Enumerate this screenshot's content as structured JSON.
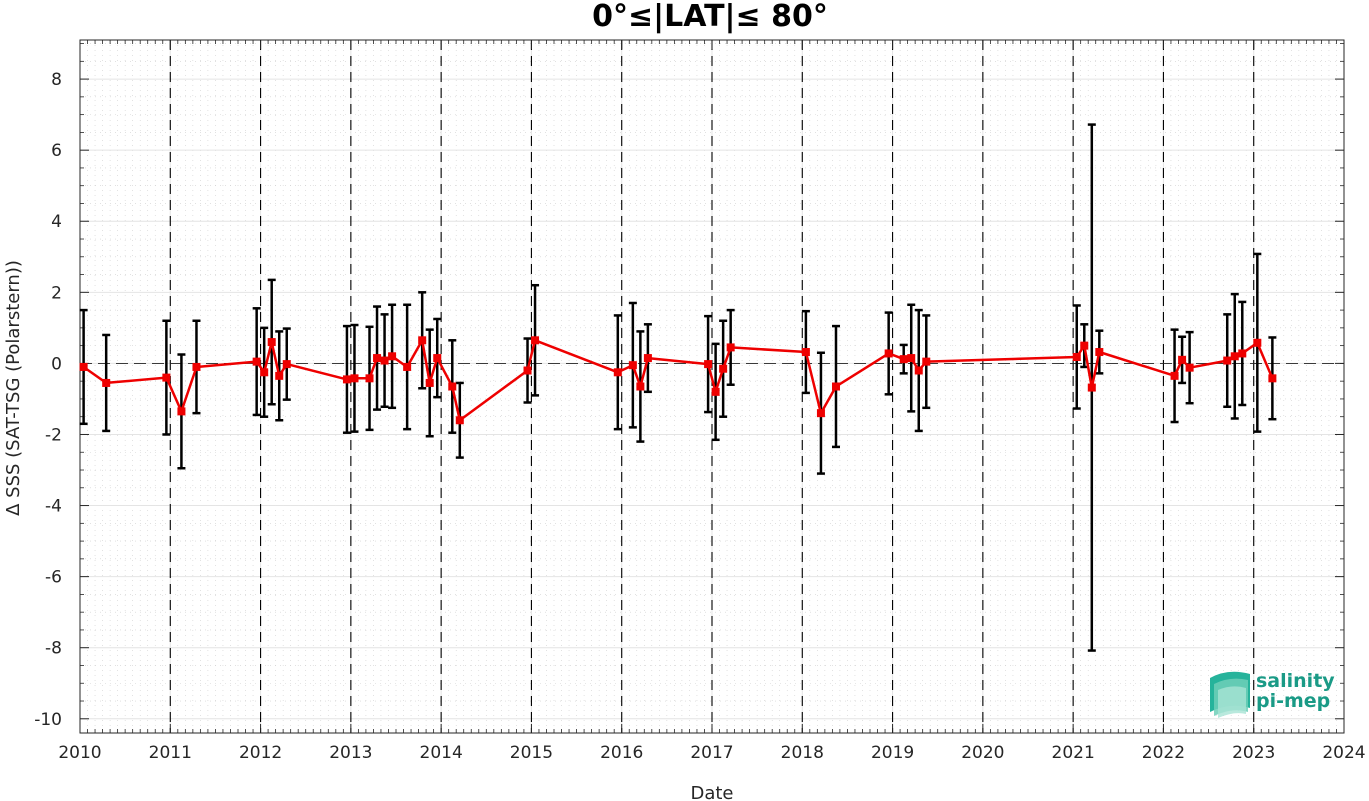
{
  "chart_data": {
    "type": "line",
    "title": "0°≤|LAT|≤ 80°",
    "xlabel": "Date",
    "ylabel": "Δ SSS (SAT-TSG (Polarstern))",
    "xlim": [
      2010,
      2024
    ],
    "ylim": [
      -10.4,
      9.1
    ],
    "x_ticks": [
      "2010",
      "2011",
      "2012",
      "2013",
      "2014",
      "2015",
      "2016",
      "2017",
      "2018",
      "2019",
      "2020",
      "2021",
      "2022",
      "2023",
      "2024"
    ],
    "y_ticks": [
      "8",
      "6",
      "4",
      "2",
      "0",
      "-2",
      "-4",
      "-6",
      "-8",
      "-10"
    ],
    "grid": true,
    "year_boundary_lines": true,
    "zero_line": true,
    "series": [
      {
        "color": "#ee0000",
        "marker": "square",
        "points": [
          {
            "x": "2010-01",
            "y": -0.1,
            "err": 1.6
          },
          {
            "x": "2010-04",
            "y": -0.55,
            "err": 1.35
          },
          {
            "x": "2010-12",
            "y": -0.4,
            "err": 1.6
          },
          {
            "x": "2011-02",
            "y": -1.35,
            "err": 1.6
          },
          {
            "x": "2011-04",
            "y": -0.1,
            "err": 1.3
          },
          {
            "x": "2011-12",
            "y": 0.05,
            "err": 1.5
          },
          {
            "x": "2012-01",
            "y": -0.25,
            "err": 1.25
          },
          {
            "x": "2012-02",
            "y": 0.6,
            "err": 1.75
          },
          {
            "x": "2012-03",
            "y": -0.35,
            "err": 1.25
          },
          {
            "x": "2012-04",
            "y": -0.02,
            "err": 1.0
          },
          {
            "x": "2012-12",
            "y": -0.45,
            "err": 1.5
          },
          {
            "x": "2013-01",
            "y": -0.42,
            "err": 1.5
          },
          {
            "x": "2013-03",
            "y": -0.42,
            "err": 1.45
          },
          {
            "x": "2013-04",
            "y": 0.15,
            "err": 1.45
          },
          {
            "x": "2013-05",
            "y": 0.08,
            "err": 1.3
          },
          {
            "x": "2013-06",
            "y": 0.2,
            "err": 1.45
          },
          {
            "x": "2013-08",
            "y": -0.1,
            "err": 1.75
          },
          {
            "x": "2013-10",
            "y": 0.65,
            "err": 1.35
          },
          {
            "x": "2013-11",
            "y": -0.55,
            "err": 1.5
          },
          {
            "x": "2013-12",
            "y": 0.15,
            "err": 1.1
          },
          {
            "x": "2014-02",
            "y": -0.65,
            "err": 1.3
          },
          {
            "x": "2014-03",
            "y": -1.6,
            "err": 1.05
          },
          {
            "x": "2014-12",
            "y": -0.2,
            "err": 0.9
          },
          {
            "x": "2015-01",
            "y": 0.65,
            "err": 1.55
          },
          {
            "x": "2015-12",
            "y": -0.25,
            "err": 1.6
          },
          {
            "x": "2016-02",
            "y": -0.05,
            "err": 1.75
          },
          {
            "x": "2016-03",
            "y": -0.65,
            "err": 1.55
          },
          {
            "x": "2016-04",
            "y": 0.15,
            "err": 0.95
          },
          {
            "x": "2016-12",
            "y": -0.02,
            "err": 1.35
          },
          {
            "x": "2017-01",
            "y": -0.8,
            "err": 1.35
          },
          {
            "x": "2017-02",
            "y": -0.15,
            "err": 1.35
          },
          {
            "x": "2017-03",
            "y": 0.45,
            "err": 1.05
          },
          {
            "x": "2018-01",
            "y": 0.32,
            "err": 1.15
          },
          {
            "x": "2018-03",
            "y": -1.4,
            "err": 1.7
          },
          {
            "x": "2018-05",
            "y": -0.65,
            "err": 1.7
          },
          {
            "x": "2018-12",
            "y": 0.28,
            "err": 1.15
          },
          {
            "x": "2019-02",
            "y": 0.12,
            "err": 0.4
          },
          {
            "x": "2019-03",
            "y": 0.15,
            "err": 1.5
          },
          {
            "x": "2019-04",
            "y": -0.2,
            "err": 1.7
          },
          {
            "x": "2019-05",
            "y": 0.05,
            "err": 1.3
          },
          {
            "x": "2021-01",
            "y": 0.18,
            "err": 1.45
          },
          {
            "x": "2021-02",
            "y": 0.5,
            "err": 0.6
          },
          {
            "x": "2021-03",
            "y": -0.68,
            "err": 7.4
          },
          {
            "x": "2021-04",
            "y": 0.32,
            "err": 0.6
          },
          {
            "x": "2022-02",
            "y": -0.35,
            "err": 1.3
          },
          {
            "x": "2022-03",
            "y": 0.1,
            "err": 0.65
          },
          {
            "x": "2022-04",
            "y": -0.12,
            "err": 1.0
          },
          {
            "x": "2022-09",
            "y": 0.08,
            "err": 1.3
          },
          {
            "x": "2022-10",
            "y": 0.2,
            "err": 1.75
          },
          {
            "x": "2022-11",
            "y": 0.28,
            "err": 1.45
          },
          {
            "x": "2023-01",
            "y": 0.58,
            "err": 2.5
          },
          {
            "x": "2023-03",
            "y": -0.42,
            "err": 1.15
          }
        ]
      }
    ]
  },
  "logo": {
    "line1": "salinity",
    "line2": "pi-mep",
    "color": "#1a9a86"
  }
}
